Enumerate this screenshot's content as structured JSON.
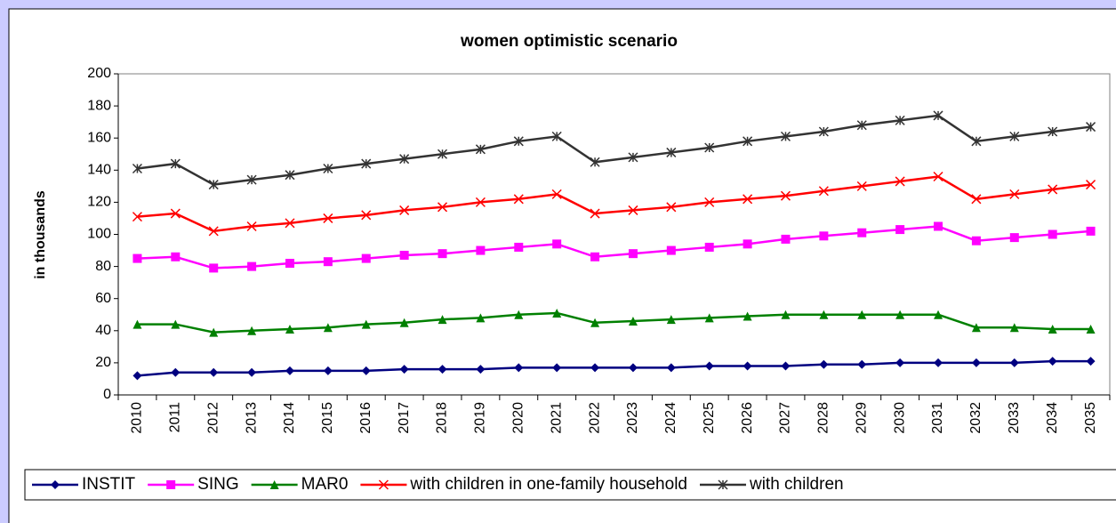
{
  "chart_data": {
    "type": "line",
    "title": "women optimistic scenario",
    "y_label": "in thousands",
    "categories": [
      "2010",
      "2011",
      "2012",
      "2013",
      "2014",
      "2015",
      "2016",
      "2017",
      "2018",
      "2019",
      "2020",
      "2021",
      "2022",
      "2023",
      "2024",
      "2025",
      "2026",
      "2027",
      "2028",
      "2029",
      "2030",
      "2031",
      "2032",
      "2033",
      "2034",
      "2035"
    ],
    "series": [
      {
        "name": "INSTIT",
        "color": "#000080",
        "marker": "diamond",
        "values": [
          12,
          14,
          14,
          14,
          15,
          15,
          15,
          16,
          16,
          16,
          17,
          17,
          17,
          17,
          17,
          18,
          18,
          18,
          19,
          19,
          20,
          20,
          20,
          20,
          21,
          21
        ]
      },
      {
        "name": "SING",
        "color": "#ff00ff",
        "marker": "square",
        "values": [
          85,
          86,
          79,
          80,
          82,
          83,
          85,
          87,
          88,
          90,
          92,
          94,
          86,
          88,
          90,
          92,
          94,
          97,
          99,
          101,
          103,
          105,
          96,
          98,
          100,
          102
        ]
      },
      {
        "name": "MAR0",
        "color": "#008000",
        "marker": "triangle",
        "values": [
          44,
          44,
          39,
          40,
          41,
          42,
          44,
          45,
          47,
          48,
          50,
          51,
          45,
          46,
          47,
          48,
          49,
          50,
          50,
          50,
          50,
          50,
          42,
          42,
          41,
          41
        ]
      },
      {
        "name": "with children in one-family household",
        "color": "#ff0000",
        "marker": "x",
        "values": [
          111,
          113,
          102,
          105,
          107,
          110,
          112,
          115,
          117,
          120,
          122,
          125,
          113,
          115,
          117,
          120,
          122,
          124,
          127,
          130,
          133,
          136,
          122,
          125,
          128,
          131
        ]
      },
      {
        "name": "with children",
        "color": "#333333",
        "marker": "star",
        "values": [
          141,
          144,
          131,
          134,
          137,
          141,
          144,
          147,
          150,
          153,
          158,
          161,
          145,
          148,
          151,
          154,
          158,
          161,
          164,
          168,
          171,
          174,
          158,
          161,
          164,
          167
        ]
      }
    ],
    "ylim": [
      0,
      200
    ],
    "yticks": [
      0,
      20,
      40,
      60,
      80,
      100,
      120,
      140,
      160,
      180,
      200
    ],
    "grid": false
  }
}
